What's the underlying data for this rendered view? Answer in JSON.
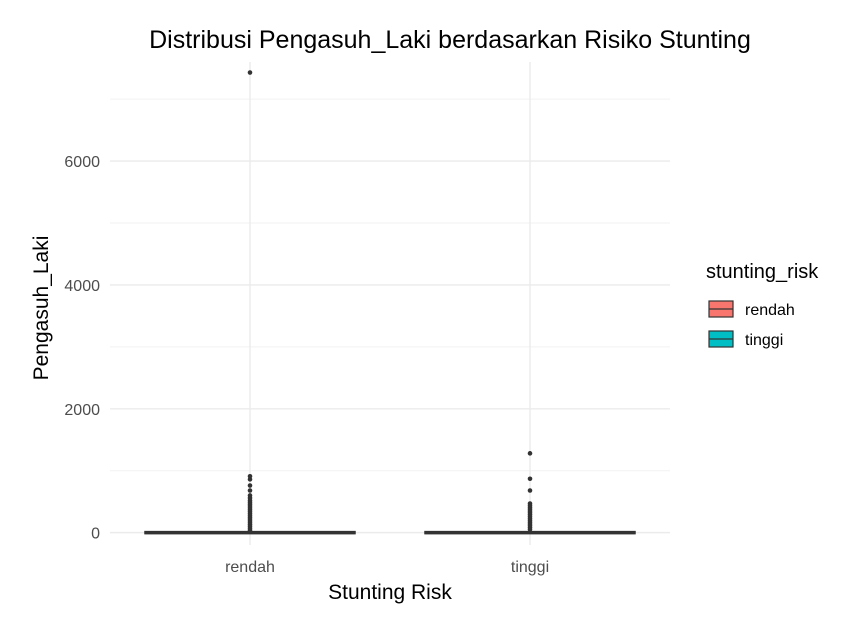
{
  "chart_data": {
    "type": "box",
    "title": "Distribusi Pengasuh_Laki berdasarkan Risiko Stunting",
    "xlabel": "Stunting Risk",
    "ylabel": "Pengasuh_Laki",
    "categories": [
      "rendah",
      "tinggi"
    ],
    "ylim": [
      -200,
      7600
    ],
    "yticks": [
      0,
      2000,
      4000,
      6000
    ],
    "ytick_labels": [
      "0",
      "2000",
      "4000",
      "6000"
    ],
    "grid": true,
    "legend": {
      "title": "stunting_risk",
      "position": "right",
      "entries": [
        {
          "label": "rendah",
          "color": "#f8766d"
        },
        {
          "label": "tinggi",
          "color": "#00bfc4"
        }
      ]
    },
    "series": [
      {
        "category": "rendah",
        "color": "#f8766d",
        "min": 0,
        "q1": 0,
        "median": 0,
        "q3": 0,
        "max": 0,
        "outliers": [
          7430,
          910,
          860,
          760,
          680,
          600,
          560,
          520,
          490,
          460,
          430,
          400,
          370,
          340,
          310,
          280,
          250,
          220,
          190,
          160,
          130,
          100,
          70,
          40
        ]
      },
      {
        "category": "tinggi",
        "color": "#00bfc4",
        "min": 0,
        "q1": 0,
        "median": 0,
        "q3": 0,
        "max": 0,
        "outliers": [
          1280,
          870,
          680,
          470,
          440,
          410,
          380,
          350,
          320,
          290,
          260,
          230,
          200,
          170,
          140,
          110,
          80,
          50
        ]
      }
    ]
  }
}
